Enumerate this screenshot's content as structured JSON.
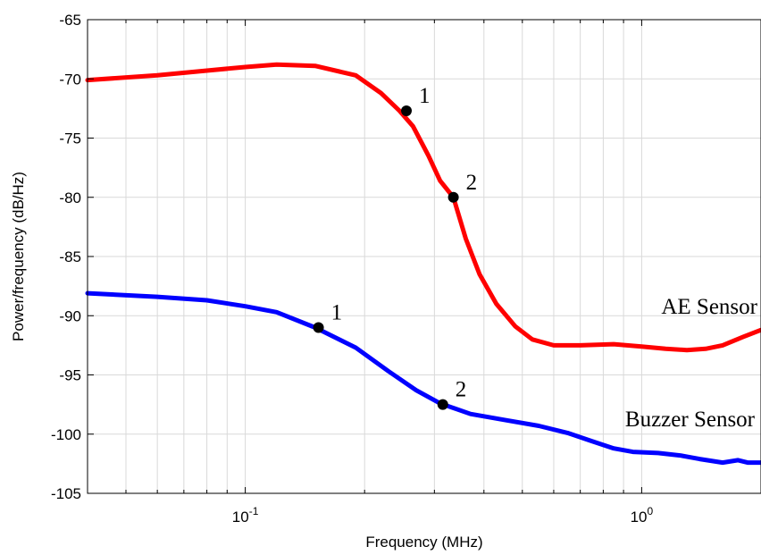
{
  "chart_data": {
    "type": "line",
    "xlabel": "Frequency (MHz)",
    "ylabel": "Power/frequency (dB/Hz)",
    "xscale": "log",
    "xlim": [
      0.04,
      2.0
    ],
    "ylim": [
      -105,
      -65
    ],
    "grid": true,
    "x_ticks": [
      {
        "value": 0.1,
        "base": "10",
        "exp": "-1"
      },
      {
        "value": 1.0,
        "base": "10",
        "exp": "0"
      }
    ],
    "y_ticks": [
      -65,
      -70,
      -75,
      -80,
      -85,
      -90,
      -95,
      -100,
      -105
    ],
    "series": [
      {
        "name": "AE Sensor",
        "color": "#ff0000",
        "x": [
          0.04,
          0.06,
          0.08,
          0.1,
          0.12,
          0.15,
          0.19,
          0.22,
          0.245,
          0.265,
          0.29,
          0.31,
          0.335,
          0.36,
          0.39,
          0.43,
          0.48,
          0.53,
          0.6,
          0.7,
          0.85,
          1.0,
          1.15,
          1.3,
          1.45,
          1.6,
          1.8,
          2.0
        ],
        "values": [
          -70.1,
          -69.7,
          -69.3,
          -69.0,
          -68.8,
          -68.9,
          -69.7,
          -71.2,
          -72.7,
          -74.0,
          -76.5,
          -78.6,
          -80.0,
          -83.5,
          -86.5,
          -89.0,
          -90.9,
          -92.0,
          -92.5,
          -92.5,
          -92.4,
          -92.6,
          -92.8,
          -92.9,
          -92.8,
          -92.5,
          -91.8,
          -91.2
        ],
        "markers": [
          {
            "label": "1",
            "x": 0.255,
            "y": -72.7
          },
          {
            "label": "2",
            "x": 0.335,
            "y": -80.0
          }
        ]
      },
      {
        "name": "Buzzer Sensor",
        "color": "#0000ff",
        "x": [
          0.04,
          0.06,
          0.08,
          0.1,
          0.12,
          0.15,
          0.19,
          0.23,
          0.27,
          0.31,
          0.37,
          0.45,
          0.55,
          0.65,
          0.75,
          0.85,
          0.95,
          1.1,
          1.25,
          1.4,
          1.6,
          1.75,
          1.85,
          2.0
        ],
        "values": [
          -88.1,
          -88.4,
          -88.7,
          -89.2,
          -89.7,
          -91.0,
          -92.7,
          -94.7,
          -96.3,
          -97.4,
          -98.3,
          -98.8,
          -99.3,
          -99.9,
          -100.6,
          -101.2,
          -101.5,
          -101.6,
          -101.8,
          -102.1,
          -102.4,
          -102.2,
          -102.4,
          -102.4
        ],
        "markers": [
          {
            "label": "1",
            "x": 0.153,
            "y": -91.0
          },
          {
            "label": "2",
            "x": 0.315,
            "y": -97.5
          }
        ]
      }
    ]
  }
}
